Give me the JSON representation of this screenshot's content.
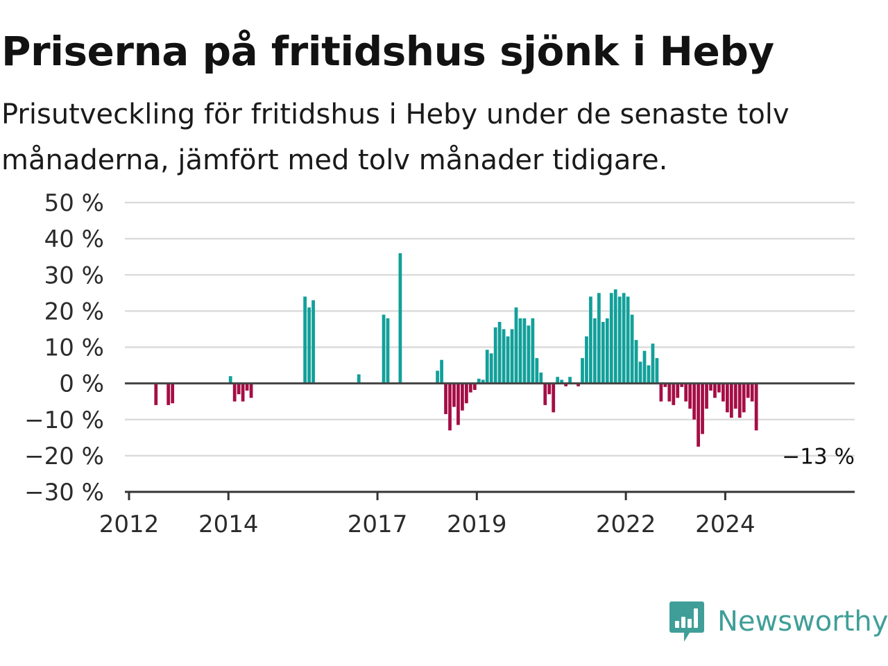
{
  "chart_data": {
    "type": "bar",
    "title": "Priserna på fritidshus sjönk i Heby",
    "subtitle": "Prisutveckling för fritidshus i Heby under de senaste tolv månaderna, jämfört med tolv månader tidigare.",
    "xlabel": "",
    "ylabel": "",
    "ylim": [
      -30,
      50
    ],
    "yticks": [
      50,
      40,
      30,
      20,
      10,
      0,
      -10,
      -20,
      -30
    ],
    "ytick_suffix": " %",
    "xticks": [
      "2012",
      "2014",
      "2017",
      "2019",
      "2022",
      "2024"
    ],
    "grid": true,
    "colors": {
      "positive": "#12a09a",
      "negative": "#a50e45"
    },
    "end_label": "−13 %",
    "bars": [
      {
        "date": "2012-07",
        "value": -6
      },
      {
        "date": "2012-10",
        "value": -6
      },
      {
        "date": "2012-11",
        "value": -5.5
      },
      {
        "date": "2014-01",
        "value": 2
      },
      {
        "date": "2014-02",
        "value": -5
      },
      {
        "date": "2014-03",
        "value": -3
      },
      {
        "date": "2014-04",
        "value": -5
      },
      {
        "date": "2014-05",
        "value": -2
      },
      {
        "date": "2014-06",
        "value": -4
      },
      {
        "date": "2015-07",
        "value": 24
      },
      {
        "date": "2015-08",
        "value": 21
      },
      {
        "date": "2015-09",
        "value": 23
      },
      {
        "date": "2016-08",
        "value": 2.5
      },
      {
        "date": "2017-02",
        "value": 19
      },
      {
        "date": "2017-03",
        "value": 18
      },
      {
        "date": "2017-06",
        "value": 36
      },
      {
        "date": "2018-03",
        "value": 3.5
      },
      {
        "date": "2018-04",
        "value": 6.5
      },
      {
        "date": "2018-05",
        "value": -8.5
      },
      {
        "date": "2018-06",
        "value": -13
      },
      {
        "date": "2018-07",
        "value": -6.5
      },
      {
        "date": "2018-08",
        "value": -11.5
      },
      {
        "date": "2018-09",
        "value": -7.5
      },
      {
        "date": "2018-10",
        "value": -5.5
      },
      {
        "date": "2018-11",
        "value": -2.5
      },
      {
        "date": "2018-12",
        "value": -1.8
      },
      {
        "date": "2019-01",
        "value": 1.3
      },
      {
        "date": "2019-02",
        "value": 1
      },
      {
        "date": "2019-03",
        "value": 9.3
      },
      {
        "date": "2019-04",
        "value": 8.3
      },
      {
        "date": "2019-05",
        "value": 15.5
      },
      {
        "date": "2019-06",
        "value": 17
      },
      {
        "date": "2019-07",
        "value": 15
      },
      {
        "date": "2019-08",
        "value": 13
      },
      {
        "date": "2019-09",
        "value": 15
      },
      {
        "date": "2019-10",
        "value": 21
      },
      {
        "date": "2019-11",
        "value": 18
      },
      {
        "date": "2019-12",
        "value": 18
      },
      {
        "date": "2020-01",
        "value": 16
      },
      {
        "date": "2020-02",
        "value": 18
      },
      {
        "date": "2020-03",
        "value": 7
      },
      {
        "date": "2020-04",
        "value": 3
      },
      {
        "date": "2020-05",
        "value": -6
      },
      {
        "date": "2020-06",
        "value": -3
      },
      {
        "date": "2020-07",
        "value": -8
      },
      {
        "date": "2020-08",
        "value": 1.8
      },
      {
        "date": "2020-09",
        "value": 1
      },
      {
        "date": "2020-10",
        "value": -0.8
      },
      {
        "date": "2020-11",
        "value": 1.8
      },
      {
        "date": "2021-01",
        "value": -0.8
      },
      {
        "date": "2021-02",
        "value": 7
      },
      {
        "date": "2021-03",
        "value": 13
      },
      {
        "date": "2021-04",
        "value": 24
      },
      {
        "date": "2021-05",
        "value": 18
      },
      {
        "date": "2021-06",
        "value": 25
      },
      {
        "date": "2021-07",
        "value": 17
      },
      {
        "date": "2021-08",
        "value": 18
      },
      {
        "date": "2021-09",
        "value": 25
      },
      {
        "date": "2021-10",
        "value": 26
      },
      {
        "date": "2021-11",
        "value": 24
      },
      {
        "date": "2021-12",
        "value": 25
      },
      {
        "date": "2022-01",
        "value": 24
      },
      {
        "date": "2022-02",
        "value": 19
      },
      {
        "date": "2022-03",
        "value": 12
      },
      {
        "date": "2022-04",
        "value": 6
      },
      {
        "date": "2022-05",
        "value": 9
      },
      {
        "date": "2022-06",
        "value": 5
      },
      {
        "date": "2022-07",
        "value": 11
      },
      {
        "date": "2022-08",
        "value": 7
      },
      {
        "date": "2022-09",
        "value": -5
      },
      {
        "date": "2022-10",
        "value": -1
      },
      {
        "date": "2022-11",
        "value": -5
      },
      {
        "date": "2022-12",
        "value": -6
      },
      {
        "date": "2023-01",
        "value": -4
      },
      {
        "date": "2023-02",
        "value": -1
      },
      {
        "date": "2023-03",
        "value": -5
      },
      {
        "date": "2023-04",
        "value": -7
      },
      {
        "date": "2023-05",
        "value": -10
      },
      {
        "date": "2023-06",
        "value": -17.5
      },
      {
        "date": "2023-07",
        "value": -14
      },
      {
        "date": "2023-08",
        "value": -7
      },
      {
        "date": "2023-09",
        "value": -2
      },
      {
        "date": "2023-10",
        "value": -4
      },
      {
        "date": "2023-11",
        "value": -2.5
      },
      {
        "date": "2023-12",
        "value": -5
      },
      {
        "date": "2024-01",
        "value": -8
      },
      {
        "date": "2024-02",
        "value": -9.5
      },
      {
        "date": "2024-03",
        "value": -7
      },
      {
        "date": "2024-04",
        "value": -9.5
      },
      {
        "date": "2024-05",
        "value": -8
      },
      {
        "date": "2024-06",
        "value": -4
      },
      {
        "date": "2024-07",
        "value": -5
      },
      {
        "date": "2024-08",
        "value": -13
      }
    ]
  },
  "logo": {
    "text": "Newsworthy",
    "icon": "newsworthy-bar-chart-icon",
    "color": "#3f9f98"
  }
}
